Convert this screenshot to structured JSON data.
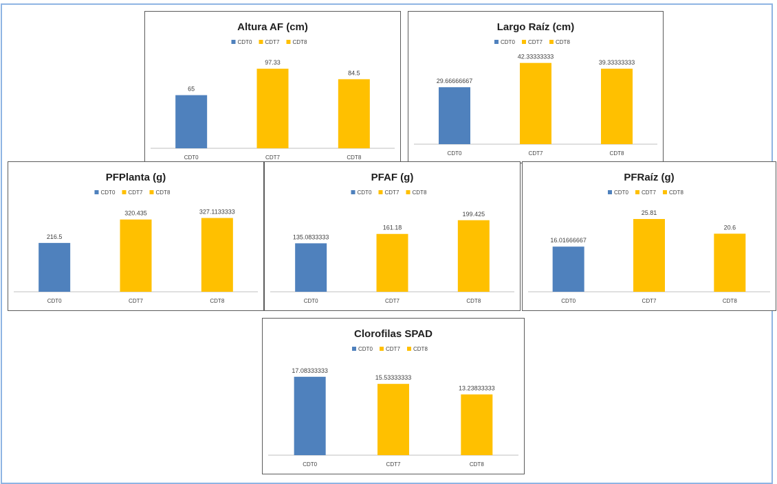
{
  "colors": {
    "frame_border": "#8eb4e3",
    "panel_border": "#5a5a5a",
    "series_blue": "#4f81bd",
    "series_gold": "#ffc000",
    "axis_line": "#bfbfbf",
    "text": "#404040"
  },
  "chart_data": [
    {
      "type": "bar",
      "title": "Altura AF (cm)",
      "categories": [
        "CDT0",
        "CDT7",
        "CDT8"
      ],
      "legend": [
        "CDT0",
        "CDT7",
        "CDT8"
      ],
      "legend_position": "top",
      "values": [
        65,
        97.33,
        84.5
      ],
      "data_labels": [
        "65",
        "97.33",
        "84.5"
      ],
      "bar_colors": [
        "#4f81bd",
        "#ffc000",
        "#ffc000"
      ],
      "ylim": [
        0,
        110
      ],
      "grid": false
    },
    {
      "type": "bar",
      "title": "Largo Raíz (cm)",
      "categories": [
        "CDT0",
        "CDT7",
        "CDT8"
      ],
      "legend": [
        "CDT0",
        "CDT7",
        "CDT8"
      ],
      "legend_position": "top",
      "values": [
        29.66666667,
        42.33333333,
        39.33333333
      ],
      "data_labels": [
        "29.66666667",
        "42.33333333",
        "39.33333333"
      ],
      "bar_colors": [
        "#4f81bd",
        "#ffc000",
        "#ffc000"
      ],
      "ylim": [
        0,
        44
      ],
      "grid": false
    },
    {
      "type": "bar",
      "title": "PFPlanta (g)",
      "categories": [
        "CDT0",
        "CDT7",
        "CDT8"
      ],
      "legend": [
        "CDT0",
        "CDT7",
        "CDT8"
      ],
      "legend_position": "top",
      "values": [
        216.5,
        320.435,
        327.1133333
      ],
      "data_labels": [
        "216.5",
        "320.435",
        "327.1133333"
      ],
      "bar_colors": [
        "#4f81bd",
        "#ffc000",
        "#ffc000"
      ],
      "ylim": [
        0,
        350
      ],
      "grid": false
    },
    {
      "type": "bar",
      "title": "PFAF (g)",
      "categories": [
        "CDT0",
        "CDT7",
        "CDT8"
      ],
      "legend": [
        "CDT0",
        "CDT7",
        "CDT8"
      ],
      "legend_position": "top",
      "values": [
        135.0833333,
        161.18,
        199.425
      ],
      "data_labels": [
        "135.0833333",
        "161.18",
        "199.425"
      ],
      "bar_colors": [
        "#4f81bd",
        "#ffc000",
        "#ffc000"
      ],
      "ylim": [
        0,
        220
      ],
      "grid": false
    },
    {
      "type": "bar",
      "title": "PFRaíz (g)",
      "categories": [
        "CDT0",
        "CDT7",
        "CDT8"
      ],
      "legend": [
        "CDT0",
        "CDT7",
        "CDT8"
      ],
      "legend_position": "top",
      "values": [
        16.01666667,
        25.81,
        20.6
      ],
      "data_labels": [
        "16.01666667",
        "25.81",
        "20.6"
      ],
      "bar_colors": [
        "#4f81bd",
        "#ffc000",
        "#ffc000"
      ],
      "ylim": [
        0,
        28
      ],
      "grid": false
    },
    {
      "type": "bar",
      "title": "Clorofilas SPAD",
      "categories": [
        "CDT0",
        "CDT7",
        "CDT8"
      ],
      "legend": [
        "CDT0",
        "CDT7",
        "CDT8"
      ],
      "legend_position": "top",
      "values": [
        17.08333333,
        15.53333333,
        13.23833333
      ],
      "data_labels": [
        "17.08333333",
        "15.53333333",
        "13.23833333"
      ],
      "bar_colors": [
        "#4f81bd",
        "#ffc000",
        "#ffc000"
      ],
      "ylim": [
        0,
        19
      ],
      "grid": false
    }
  ]
}
